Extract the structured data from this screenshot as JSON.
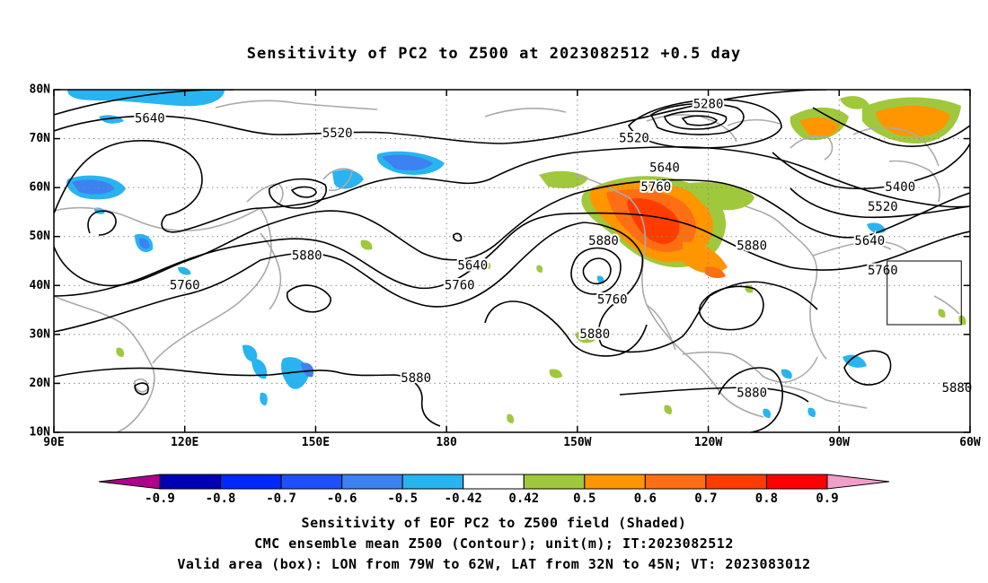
{
  "title": "Sensitivity of PC2 to Z500 at 2023082512 +0.5 day",
  "captions": {
    "line1": "Sensitivity of EOF PC2 to Z500 field (Shaded)",
    "line2": "CMC ensemble mean Z500 (Contour); unit(m); IT:2023082512",
    "line3": "Valid area (box): LON from 79W to 62W, LAT from 32N to 45N; VT: 2023083012"
  },
  "map": {
    "lon_range": [
      90,
      300
    ],
    "lat_range": [
      10,
      80
    ],
    "lon_ticks": [
      {
        "lon": 90,
        "label": "90E"
      },
      {
        "lon": 120,
        "label": "120E"
      },
      {
        "lon": 150,
        "label": "150E"
      },
      {
        "lon": 180,
        "label": "180"
      },
      {
        "lon": 210,
        "label": "150W"
      },
      {
        "lon": 240,
        "label": "120W"
      },
      {
        "lon": 270,
        "label": "90W"
      },
      {
        "lon": 300,
        "label": "60W"
      }
    ],
    "lat_ticks": [
      {
        "lat": 10,
        "label": "10N"
      },
      {
        "lat": 20,
        "label": "20N"
      },
      {
        "lat": 30,
        "label": "30N"
      },
      {
        "lat": 40,
        "label": "40N"
      },
      {
        "lat": 50,
        "label": "50N"
      },
      {
        "lat": 60,
        "label": "60N"
      },
      {
        "lat": 70,
        "label": "70N"
      },
      {
        "lat": 80,
        "label": "80N"
      }
    ],
    "grid": true,
    "valid_box": {
      "lon_west": 281,
      "lon_east": 298,
      "lat_south": 32,
      "lat_north": 45
    },
    "contour_labels": [
      {
        "text": "5280",
        "lon": 240,
        "lat": 77
      },
      {
        "text": "5640",
        "lon": 112,
        "lat": 74
      },
      {
        "text": "5520",
        "lon": 155,
        "lat": 71
      },
      {
        "text": "5520",
        "lon": 223,
        "lat": 70
      },
      {
        "text": "5640",
        "lon": 230,
        "lat": 64
      },
      {
        "text": "5760",
        "lon": 228,
        "lat": 60
      },
      {
        "text": "5400",
        "lon": 284,
        "lat": 60
      },
      {
        "text": "5520",
        "lon": 280,
        "lat": 56
      },
      {
        "text": "5640",
        "lon": 277,
        "lat": 49
      },
      {
        "text": "5760",
        "lon": 280,
        "lat": 43
      },
      {
        "text": "5880",
        "lon": 216,
        "lat": 49
      },
      {
        "text": "5880",
        "lon": 250,
        "lat": 48
      },
      {
        "text": "5880",
        "lon": 148,
        "lat": 46
      },
      {
        "text": "5640",
        "lon": 186,
        "lat": 44
      },
      {
        "text": "5760",
        "lon": 183,
        "lat": 40
      },
      {
        "text": "5760",
        "lon": 120,
        "lat": 40
      },
      {
        "text": "5760",
        "lon": 218,
        "lat": 37
      },
      {
        "text": "5880",
        "lon": 214,
        "lat": 30
      },
      {
        "text": "5880",
        "lon": 173,
        "lat": 21
      },
      {
        "text": "5880",
        "lon": 250,
        "lat": 18
      },
      {
        "text": "5880",
        "lon": 297,
        "lat": 19
      }
    ]
  },
  "colorbar": {
    "labels": [
      "-0.9",
      "-0.8",
      "-0.7",
      "-0.6",
      "-0.5",
      "-0.42",
      "0.42",
      "0.5",
      "0.6",
      "0.7",
      "0.8",
      "0.9"
    ],
    "colors": {
      "lower_extend": "#b0008c",
      "bins": [
        "#0000b4",
        "#0028ff",
        "#1e50ff",
        "#3c82f0",
        "#28b4f0",
        "#ffffff",
        "#a0c83c",
        "#ff9600",
        "#ff6e14",
        "#ff3c00",
        "#ff0000"
      ],
      "upper_extend": "#f0a0c8"
    }
  },
  "shading_colors": {
    "blue_dark": "#1e50ff",
    "blue_mid": "#3c82f0",
    "blue_light": "#28b4f0",
    "green": "#a0c83c",
    "orange": "#ff9600",
    "orange_dark": "#ff6e14",
    "red": "#ff3c00",
    "coast": "#aaaaaa",
    "contour": "#000000"
  }
}
